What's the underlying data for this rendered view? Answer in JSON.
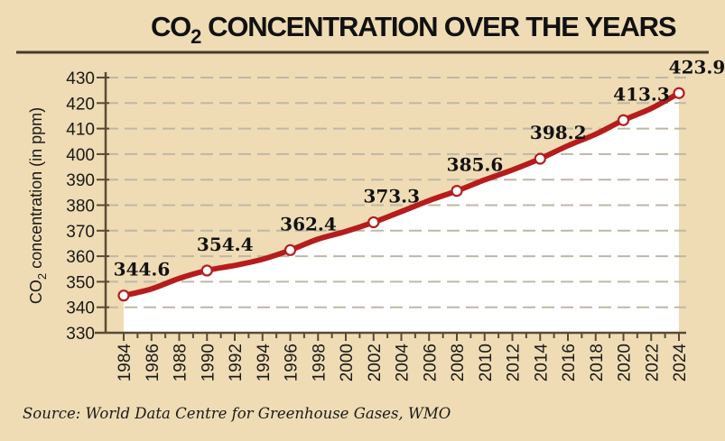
{
  "header": {
    "title_prefix": "CO",
    "title_subscript": "2",
    "title_rest": "CONCENTRATION OVER THE YEARS"
  },
  "source": "Source: World Data Centre for Greenhouse Gases, WMO",
  "colors": {
    "background": "#efdcb4",
    "line": "#b71c1c",
    "area_fill": "#ffffff",
    "gridline": "#bfb7a6",
    "axis": "#5a4a36"
  },
  "chart_data": {
    "type": "line",
    "title": "CO2 CONCENTRATION OVER THE YEARS",
    "xlabel": "",
    "ylabel": "CO2 concentration (in ppm)",
    "ylabel_parts": {
      "prefix": "CO",
      "subscript": "2",
      "rest": " concentration (in ppm)"
    },
    "ylim": [
      330,
      430
    ],
    "xlim": [
      1984,
      2024
    ],
    "y_ticks": [
      330,
      340,
      350,
      360,
      370,
      380,
      390,
      400,
      410,
      420,
      430
    ],
    "x_ticks": [
      1984,
      1986,
      1988,
      1990,
      1992,
      1994,
      1996,
      1998,
      2000,
      2002,
      2004,
      2006,
      2008,
      2010,
      2012,
      2014,
      2016,
      2018,
      2020,
      2022,
      2024
    ],
    "grid": "horizontal-dashed",
    "area_under_curve": true,
    "series": [
      {
        "name": "CO2 concentration",
        "x": [
          1984,
          1986,
          1988,
          1990,
          1992,
          1994,
          1996,
          1998,
          2000,
          2002,
          2004,
          2006,
          2008,
          2010,
          2012,
          2014,
          2016,
          2018,
          2020,
          2022,
          2024
        ],
        "values": [
          344.6,
          347.2,
          351.3,
          354.4,
          356.4,
          358.8,
          362.4,
          366.7,
          369.7,
          373.3,
          377.5,
          381.8,
          385.6,
          389.9,
          393.8,
          398.2,
          403.3,
          407.8,
          413.3,
          417.9,
          423.9
        ]
      }
    ],
    "markers": [
      {
        "x": 1984,
        "y": 344.6,
        "label": "344.6"
      },
      {
        "x": 1990,
        "y": 354.4,
        "label": "354.4"
      },
      {
        "x": 1996,
        "y": 362.4,
        "label": "362.4"
      },
      {
        "x": 2002,
        "y": 373.3,
        "label": "373.3"
      },
      {
        "x": 2008,
        "y": 385.6,
        "label": "385.6"
      },
      {
        "x": 2014,
        "y": 398.2,
        "label": "398.2"
      },
      {
        "x": 2020,
        "y": 413.3,
        "label": "413.3"
      },
      {
        "x": 2024,
        "y": 423.9,
        "label": "423.9"
      }
    ]
  }
}
